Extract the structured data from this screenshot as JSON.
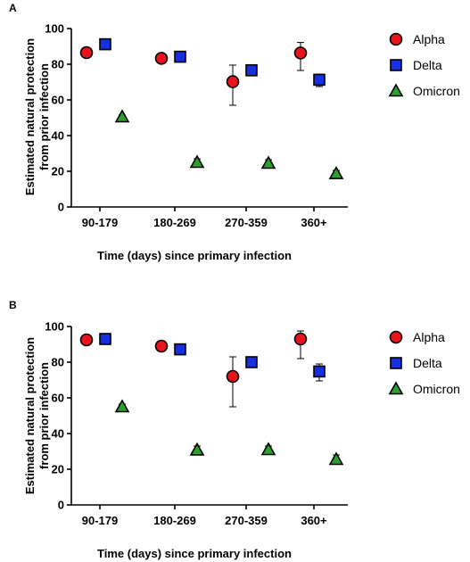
{
  "chart_data": [
    {
      "panel_label": "A",
      "type": "scatter",
      "categories": [
        "90-179",
        "180-269",
        "270-359",
        "360+"
      ],
      "xlabel": "Time (days) since primary infection",
      "ylabel_lines": [
        "Estimated natural protection",
        "from prior infection"
      ],
      "ylim": [
        0,
        100
      ],
      "yticks": [
        0,
        20,
        40,
        60,
        80,
        100
      ],
      "legend_position": "right",
      "grid": false,
      "series": [
        {
          "name": "Alpha",
          "marker": "circle",
          "color": "#e8141b",
          "values": [
            86.5,
            83.3,
            70.2,
            86.3
          ],
          "err_low": [
            85.5,
            81.0,
            57.0,
            76.5
          ],
          "err_high": [
            87.5,
            85.0,
            79.5,
            92.2
          ]
        },
        {
          "name": "Delta",
          "marker": "square",
          "color": "#1530e0",
          "values": [
            91.2,
            84.2,
            76.6,
            71.3
          ],
          "err_low": [
            90.5,
            83.0,
            75.0,
            67.5
          ],
          "err_high": [
            92.0,
            85.5,
            78.0,
            74.5
          ]
        },
        {
          "name": "Omicron",
          "marker": "triangle",
          "color": "#2ca02c",
          "values": [
            50.5,
            25.0,
            24.5,
            18.7
          ],
          "err_low": [
            49.5,
            23.0,
            22.5,
            17.0
          ],
          "err_high": [
            51.5,
            27.0,
            26.5,
            20.5
          ]
        }
      ]
    },
    {
      "panel_label": "B",
      "type": "scatter",
      "categories": [
        "90-179",
        "180-269",
        "270-359",
        "360+"
      ],
      "xlabel": "Time (days) since primary infection",
      "ylabel_lines": [
        "Estimated natural protection",
        "from prior infection"
      ],
      "ylim": [
        0,
        100
      ],
      "yticks": [
        0,
        20,
        40,
        60,
        80,
        100
      ],
      "legend_position": "right",
      "grid": false,
      "series": [
        {
          "name": "Alpha",
          "marker": "circle",
          "color": "#e8141b",
          "values": [
            92.5,
            89.0,
            72.0,
            93.0
          ],
          "err_low": [
            91.5,
            87.0,
            55.0,
            82.0
          ],
          "err_high": [
            93.5,
            91.0,
            83.0,
            97.5
          ]
        },
        {
          "name": "Delta",
          "marker": "square",
          "color": "#1530e0",
          "values": [
            93.0,
            87.2,
            80.0,
            74.8
          ],
          "err_low": [
            92.0,
            86.0,
            78.5,
            69.5
          ],
          "err_high": [
            94.0,
            88.5,
            81.5,
            79.0
          ]
        },
        {
          "name": "Omicron",
          "marker": "triangle",
          "color": "#2ca02c",
          "values": [
            55.0,
            30.8,
            31.0,
            25.5
          ],
          "err_low": [
            53.5,
            28.5,
            29.0,
            23.5
          ],
          "err_high": [
            56.5,
            33.0,
            33.0,
            28.0
          ]
        }
      ]
    }
  ]
}
